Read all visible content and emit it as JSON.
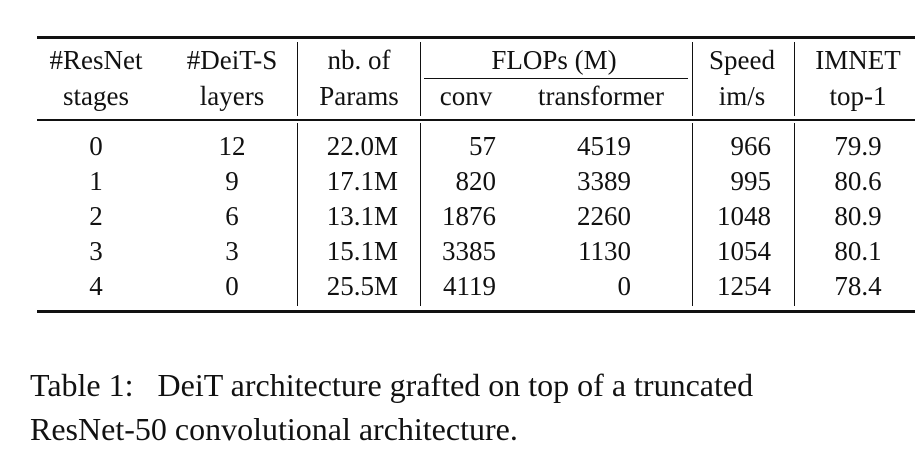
{
  "table": {
    "headers": {
      "resnet_stages": [
        "#ResNet",
        "stages"
      ],
      "deit_layers": [
        "#DeiT-S",
        "layers"
      ],
      "params": [
        "nb. of",
        "Params"
      ],
      "flops": "FLOPs (M)",
      "flops_conv": "conv",
      "flops_transformer": "transformer",
      "speed": [
        "Speed",
        "im/s"
      ],
      "imnet": [
        "IMNET",
        "top-1"
      ]
    },
    "rows": [
      [
        "0",
        "12",
        "22.0M",
        "57",
        "4519",
        "966",
        "79.9"
      ],
      [
        "1",
        "9",
        "17.1M",
        "820",
        "3389",
        "995",
        "80.6"
      ],
      [
        "2",
        "6",
        "13.1M",
        "1876",
        "2260",
        "1048",
        "80.9"
      ],
      [
        "3",
        "3",
        "15.1M",
        "3385",
        "1130",
        "1054",
        "80.1"
      ],
      [
        "4",
        "0",
        "25.5M",
        "4119",
        "0",
        "1254",
        "78.4"
      ]
    ]
  },
  "caption": {
    "line1": "Table 1:   DeiT architecture grafted on top of a truncated",
    "line2": "ResNet-50 convolutional architecture."
  }
}
